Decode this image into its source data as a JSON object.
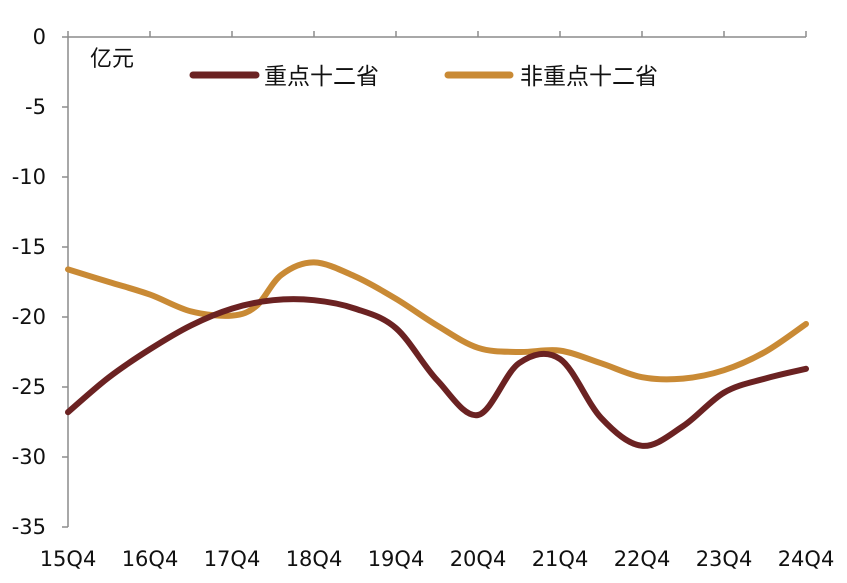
{
  "chart_data": {
    "type": "line",
    "unit_label": "亿元",
    "categories": [
      "15Q4",
      "16Q4",
      "17Q4",
      "18Q4",
      "19Q4",
      "20Q4",
      "21Q4",
      "22Q4",
      "23Q4",
      "24Q4"
    ],
    "ylim": [
      -35,
      0
    ],
    "yticks": [
      0,
      -5,
      -10,
      -15,
      -20,
      -25,
      -30,
      -35
    ],
    "grid": false,
    "legend_position": "top",
    "series": [
      {
        "name": "重点十二省",
        "color": "#6B2222",
        "x": [
          0,
          0.5,
          1,
          1.5,
          2,
          2.5,
          3,
          3.5,
          4,
          4.5,
          5,
          5.5,
          6,
          6.5,
          7,
          7.5,
          8,
          8.5,
          9
        ],
        "values": [
          -26.8,
          -24.3,
          -22.3,
          -20.6,
          -19.4,
          -18.8,
          -18.8,
          -19.4,
          -20.8,
          -24.5,
          -27.0,
          -23.3,
          -23.0,
          -27.2,
          -29.2,
          -27.8,
          -25.4,
          -24.4,
          -23.7
        ]
      },
      {
        "name": "非重点十二省",
        "color": "#C98A35",
        "x": [
          0,
          0.5,
          1,
          1.5,
          2,
          2.3,
          2.6,
          3,
          3.5,
          4,
          4.5,
          5,
          5.5,
          6,
          6.5,
          7,
          7.5,
          8,
          8.5,
          9
        ],
        "values": [
          -16.6,
          -17.5,
          -18.4,
          -19.6,
          -19.9,
          -19.2,
          -17.0,
          -16.1,
          -17.1,
          -18.7,
          -20.6,
          -22.2,
          -22.5,
          -22.4,
          -23.3,
          -24.3,
          -24.4,
          -23.8,
          -22.5,
          -20.5
        ]
      }
    ]
  }
}
